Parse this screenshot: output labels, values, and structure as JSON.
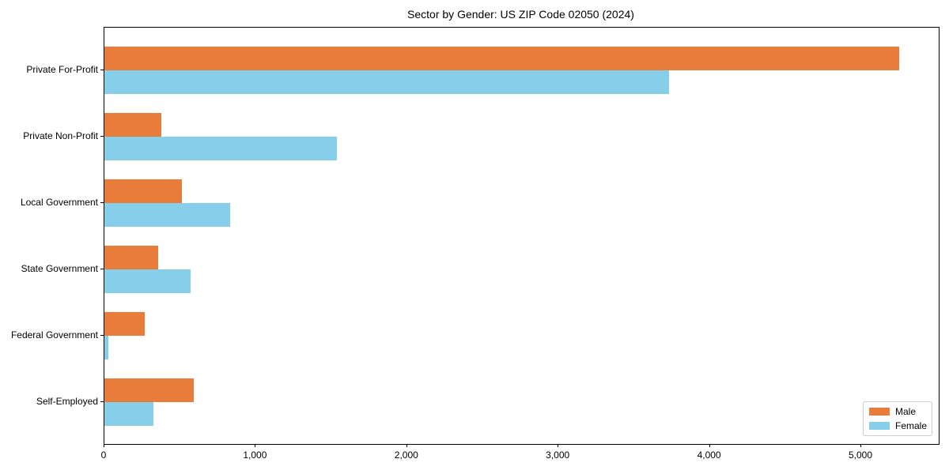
{
  "chart_data": {
    "type": "bar",
    "orientation": "horizontal",
    "title": "Sector by Gender: US ZIP Code 02050 (2024)",
    "categories": [
      "Private For-Profit",
      "Private Non-Profit",
      "Local Government",
      "State Government",
      "Federal Government",
      "Self-Employed"
    ],
    "series": [
      {
        "name": "Male",
        "color": "#e87d3b",
        "values": [
          5250,
          375,
          510,
          355,
          265,
          590
        ]
      },
      {
        "name": "Female",
        "color": "#87ceeb",
        "values": [
          3730,
          1535,
          830,
          570,
          25,
          325
        ]
      }
    ],
    "xlabel": "",
    "ylabel": "",
    "xlim": [
      0,
      5512
    ],
    "x_ticks": [
      0,
      1000,
      2000,
      3000,
      4000,
      5000
    ],
    "x_tick_labels": [
      "0",
      "1,000",
      "2,000",
      "3,000",
      "4,000",
      "5,000"
    ],
    "grid": false,
    "legend_position": "lower right"
  }
}
